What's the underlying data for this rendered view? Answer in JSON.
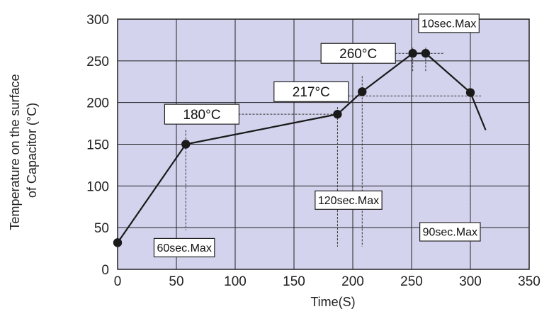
{
  "chart_data": {
    "type": "line",
    "title": "",
    "xlabel": "Time(S)",
    "ylabel_lines": [
      "Temperature on the surface",
      "of Capacitor (°C)"
    ],
    "xlim": [
      0,
      350
    ],
    "ylim": [
      0,
      300
    ],
    "x_ticks": [
      0,
      50,
      100,
      150,
      200,
      250,
      300,
      350
    ],
    "y_ticks": [
      0,
      50,
      100,
      150,
      200,
      250,
      300
    ],
    "grid": true,
    "colors": {
      "plot_bg": "#d3d3ed",
      "grid": "#222222",
      "line": "#1a1a1a",
      "box_bg": "#ffffff"
    },
    "series": [
      {
        "x": [
          0,
          58,
          187,
          208,
          251,
          262,
          300
        ],
        "y": [
          32,
          150,
          186,
          213,
          259,
          259,
          212
        ]
      }
    ],
    "tail": {
      "x": [
        300,
        313
      ],
      "y": [
        212,
        167
      ]
    },
    "annotations": [
      {
        "text": "180°C",
        "x": 40,
        "y": 186
      },
      {
        "text": "217°C",
        "x": 133,
        "y": 213
      },
      {
        "text": "260°C",
        "x": 173,
        "y": 259
      },
      {
        "text": "10sec.Max",
        "x": 256,
        "y": 295
      },
      {
        "text": "60sec.Max",
        "x": 31,
        "y": 26
      },
      {
        "text": "120sec.Max",
        "x": 168,
        "y": 83
      },
      {
        "text": "90sec.Max",
        "x": 257,
        "y": 45
      }
    ]
  }
}
